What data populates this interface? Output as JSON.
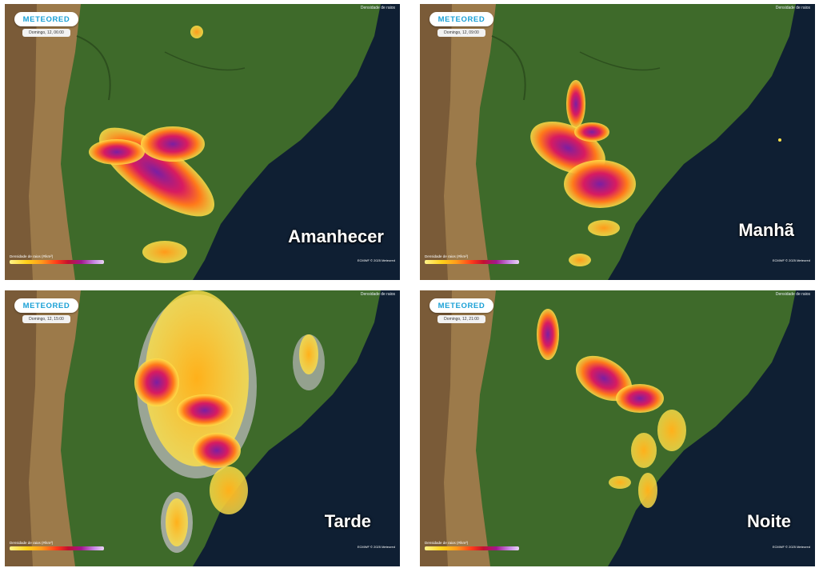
{
  "brand": {
    "logo_text": "METEORED"
  },
  "layer_label": "Densidade de raios",
  "legend_title": "Densidade de raios (#/km²)",
  "copyright": "ECMWF © 2025 Meteored",
  "panels": [
    {
      "period": "Amanhecer",
      "timestamp": "Domingo, 12, 06:00"
    },
    {
      "period": "Manhã",
      "timestamp": "Domingo, 12, 09:00"
    },
    {
      "period": "Tarde",
      "timestamp": "Domingo, 12, 15:00"
    },
    {
      "period": "Noite",
      "timestamp": "Domingo, 12, 21:00"
    }
  ],
  "colors": {
    "ocean": "#0d1b2e",
    "land": "#3e6a2a",
    "andes": "#9c7a4a",
    "low_density": "#ffe14a",
    "mid_density": "#ff5a1f",
    "high_density": "#a2178f"
  }
}
